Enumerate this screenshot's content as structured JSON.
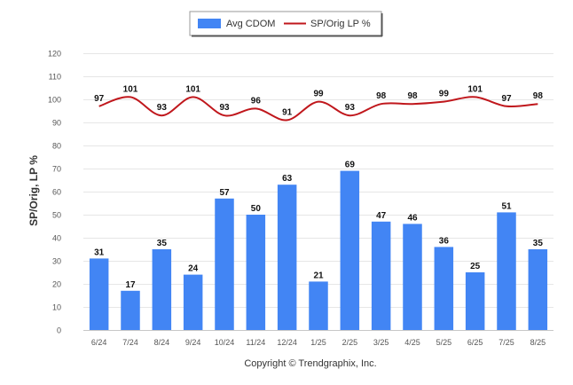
{
  "chart_data": {
    "type": "bar",
    "categories": [
      "6/24",
      "7/24",
      "8/24",
      "9/24",
      "10/24",
      "11/24",
      "12/24",
      "1/25",
      "2/25",
      "3/25",
      "4/25",
      "5/25",
      "6/25",
      "7/25",
      "8/25"
    ],
    "series": [
      {
        "name": "Avg CDOM",
        "type": "bar",
        "color": "#4285f4",
        "values": [
          31,
          17,
          35,
          24,
          57,
          50,
          63,
          21,
          69,
          47,
          46,
          36,
          25,
          51,
          35
        ]
      },
      {
        "name": "SP/Orig LP %",
        "type": "line",
        "color": "#c0171c",
        "values": [
          97,
          101,
          93,
          101,
          93,
          96,
          91,
          99,
          93,
          98,
          98,
          99,
          101,
          97,
          98
        ]
      }
    ],
    "ylabel": "SP/Orig, LP %",
    "ylim": [
      0,
      120
    ],
    "yticks": [
      "0",
      "10",
      "20",
      "30",
      "40",
      "50",
      "60",
      "70",
      "80",
      "90",
      "100",
      "110",
      "120"
    ],
    "grid": true,
    "legend_position": "top-center"
  },
  "legend": {
    "bar_label": "Avg CDOM",
    "line_label": "SP/Orig LP %"
  },
  "credit": "Copyright © Trendgraphix, Inc."
}
